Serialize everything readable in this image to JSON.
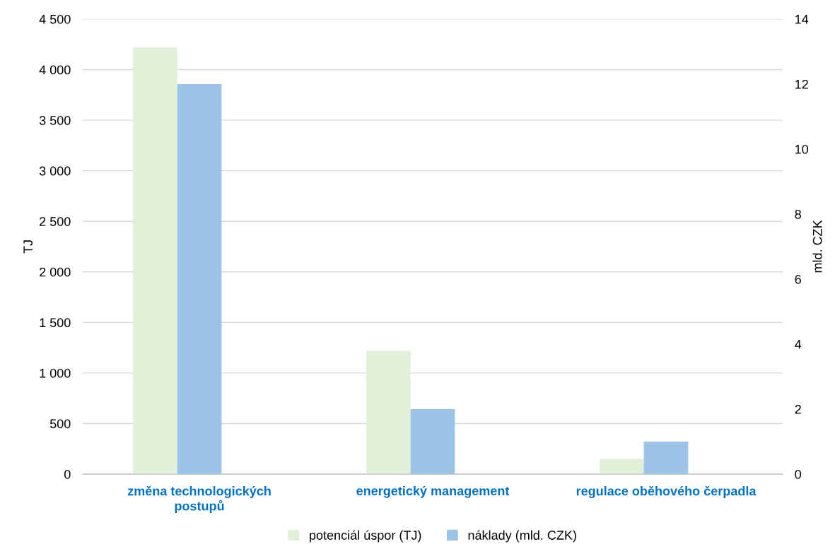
{
  "chart_data": {
    "type": "bar",
    "categories": [
      "změna technologických\npostupů",
      "energetický management",
      "regulace oběhového čerpadla"
    ],
    "series": [
      {
        "name": "potenciál úspor (TJ)",
        "color": "#e2efd9",
        "values": [
          4220,
          1220,
          150
        ]
      },
      {
        "name": "náklady (mld. CZK)",
        "color": "#9dc3e6",
        "values": [
          12,
          2,
          1
        ],
        "axis": "y2"
      }
    ],
    "ylabel": "TJ",
    "y2label": "mld. CZK",
    "ylim": [
      0,
      4500
    ],
    "yticks": [
      0,
      {
        "value": 500,
        "label": "500"
      },
      {
        "value": 1000,
        "label": "1 000"
      },
      {
        "value": 1500,
        "label": "1 500"
      },
      {
        "value": 2000,
        "label": "2 000"
      },
      {
        "value": 2500,
        "label": "2 500"
      },
      {
        "value": 3000,
        "label": "3 000"
      },
      {
        "value": 3500,
        "label": "3 500"
      },
      {
        "value": 4000,
        "label": "4 000"
      },
      {
        "value": 4500,
        "label": "4 500"
      }
    ],
    "y2lim": [
      0,
      14
    ],
    "y2ticks": [
      0,
      2,
      4,
      6,
      8,
      10,
      12,
      14
    ],
    "grid": "y",
    "legend": "bottom"
  }
}
